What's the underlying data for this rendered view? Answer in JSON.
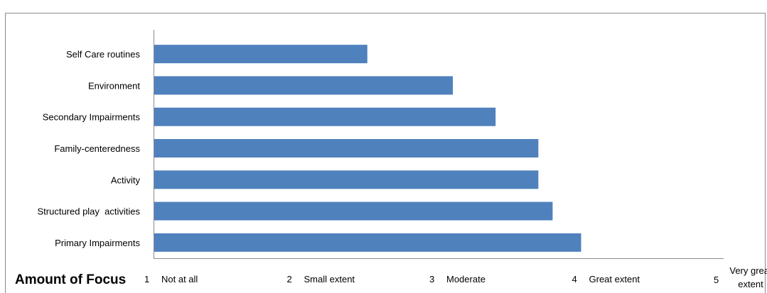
{
  "chart_data": {
    "type": "bar",
    "orientation": "horizontal",
    "title": "",
    "xlabel": "Amount of Focus",
    "ylabel": "",
    "categories": [
      "Self Care routines",
      "Environment",
      "Secondary Impairments",
      "Family-centeredness",
      "Activity",
      "Structured play  activities",
      "Primary Impairments"
    ],
    "values": [
      2.5,
      3.1,
      3.4,
      3.7,
      3.7,
      3.8,
      4.0
    ],
    "xlim": [
      1,
      5
    ],
    "x_ticks": [
      {
        "value": 1,
        "number": "1",
        "label": "Not at all"
      },
      {
        "value": 2,
        "number": "2",
        "label": "Small extent"
      },
      {
        "value": 3,
        "number": "3",
        "label": "Moderate"
      },
      {
        "value": 4,
        "number": "4",
        "label": "Great extent"
      },
      {
        "value": 5,
        "number": "5",
        "label": "Very great extent"
      }
    ],
    "grid": false,
    "legend": "none",
    "colors": {
      "bar": "#4f81bd",
      "axis": "#8a8a8a",
      "text": "#000000"
    }
  }
}
